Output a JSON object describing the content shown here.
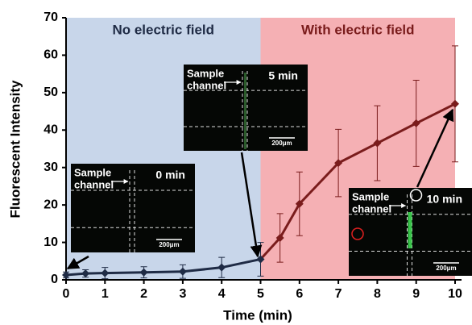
{
  "chart_data": {
    "type": "line",
    "xlabel": "Time (min)",
    "ylabel": "Fluorescent Intensity",
    "x": [
      0,
      0.5,
      1,
      2,
      3,
      4,
      5,
      5.5,
      6,
      7,
      8,
      9,
      10
    ],
    "series": [
      {
        "values": [
          1.3,
          1.7,
          1.8,
          2,
          2.2,
          3.3,
          5.5,
          11.2,
          20.3,
          31.2,
          36.5,
          41.8,
          47
        ],
        "errors": [
          0.8,
          1,
          1.5,
          1.5,
          1.8,
          2.7,
          4.5,
          6.5,
          8.5,
          9,
          10,
          11.5,
          15.5
        ]
      }
    ],
    "regions": [
      {
        "label": "No electric field",
        "xlim": [
          0,
          5
        ],
        "color": "#c8d6ea",
        "line_color": "#1f2b45"
      },
      {
        "label": "With electric field",
        "xlim": [
          5,
          10
        ],
        "color": "#f5b0b4",
        "line_color": "#7a1c1c"
      }
    ],
    "xlim": [
      0,
      10
    ],
    "xticks": [
      0,
      1,
      2,
      3,
      4,
      5,
      6,
      7,
      8,
      9,
      10
    ],
    "ylim": [
      0,
      70
    ],
    "yticks": [
      0,
      10,
      20,
      30,
      40,
      50,
      60,
      70
    ],
    "insets": [
      {
        "label": [
          "Sample",
          "channel"
        ],
        "time": "0 min",
        "scale": "200μm"
      },
      {
        "label": [
          "Sample",
          "channel"
        ],
        "time": "5 min",
        "scale": "200μm"
      },
      {
        "label": [
          "Sample",
          "channel"
        ],
        "time": "10 min",
        "scale": "200μm"
      }
    ]
  }
}
